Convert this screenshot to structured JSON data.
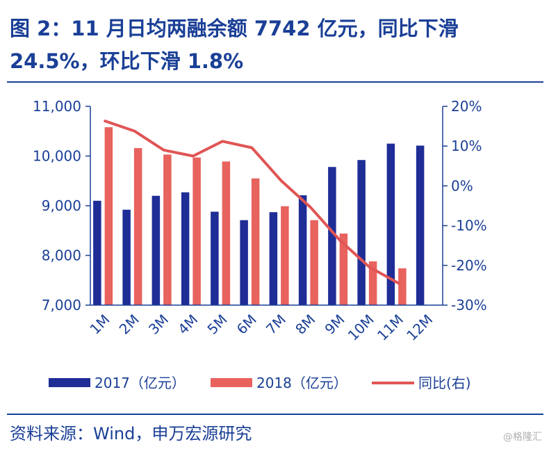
{
  "title": "图 2：11 月日均两融余额 7742 亿元，同比下滑 24.5%，环比下滑 1.8%",
  "source": "资料来源：Wind，申万宏源研究",
  "watermark": "@格隆汇",
  "colors": {
    "series_2017": "#1f2d96",
    "series_2018": "#e8625e",
    "yoy_line": "#e05555",
    "axis": "#1a3f96",
    "title": "#1a3f96"
  },
  "chart_data": {
    "type": "bar",
    "categories": [
      "1M",
      "2M",
      "3M",
      "4M",
      "5M",
      "6M",
      "7M",
      "8M",
      "9M",
      "10M",
      "11M",
      "12M"
    ],
    "series": [
      {
        "name": "2017（亿元）",
        "kind": "bar",
        "axis": "left",
        "values": [
          9100,
          8920,
          9200,
          9270,
          8880,
          8710,
          8870,
          9210,
          9780,
          9920,
          10250,
          10210
        ]
      },
      {
        "name": "2018（亿元）",
        "kind": "bar",
        "axis": "left",
        "values": [
          10580,
          10160,
          10030,
          9970,
          9890,
          9550,
          8990,
          8710,
          8440,
          7880,
          7740,
          null
        ]
      },
      {
        "name": "同比(右)",
        "kind": "line",
        "axis": "right",
        "unit": "%",
        "values": [
          16.3,
          13.8,
          9.0,
          7.5,
          11.2,
          9.6,
          1.3,
          -5.4,
          -13.7,
          -20.4,
          -24.5,
          null
        ]
      }
    ],
    "y_left": {
      "min": 7000,
      "max": 11000,
      "ticks": [
        "7,000",
        "8,000",
        "9,000",
        "10,000",
        "11,000"
      ]
    },
    "y_right": {
      "min": -30,
      "max": 20,
      "ticks": [
        "-30%",
        "-20%",
        "-10%",
        "0%",
        "10%",
        "20%"
      ]
    },
    "grid": false,
    "legend": "bottom"
  }
}
